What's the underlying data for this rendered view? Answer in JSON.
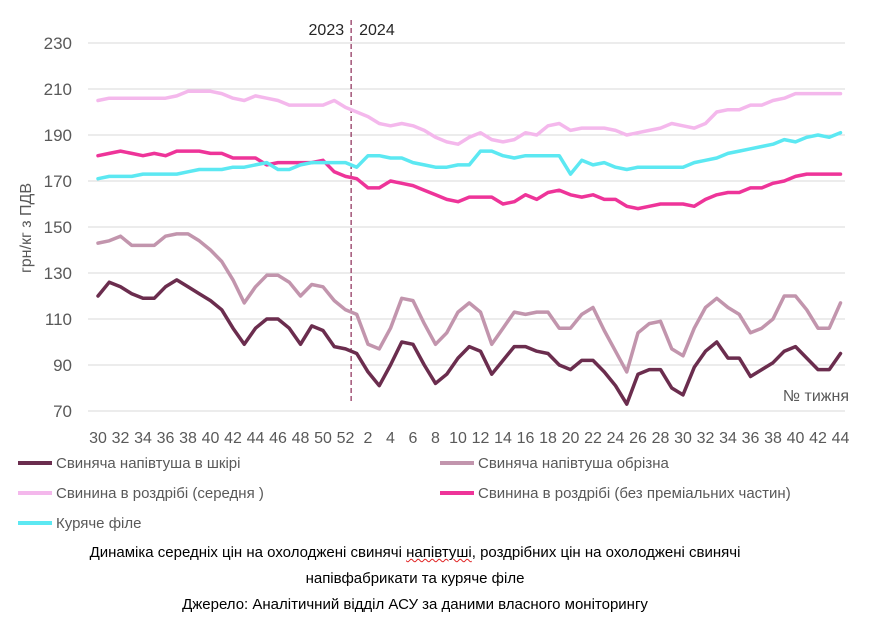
{
  "chart_data": {
    "type": "line",
    "ylabel": "грн/кг з ПДВ",
    "xlabel": "№ тижня",
    "ylim": [
      70,
      230
    ],
    "yticks": [
      70,
      90,
      110,
      130,
      150,
      170,
      190,
      210,
      230
    ],
    "x_weeks": [
      30,
      31,
      32,
      33,
      34,
      35,
      36,
      37,
      38,
      39,
      40,
      41,
      42,
      43,
      44,
      45,
      46,
      47,
      48,
      49,
      50,
      51,
      52,
      1,
      2,
      3,
      4,
      5,
      6,
      7,
      8,
      9,
      10,
      11,
      12,
      13,
      14,
      15,
      16,
      17,
      18,
      19,
      20,
      21,
      22,
      23,
      24,
      25,
      26,
      27,
      28,
      29,
      30,
      31,
      32,
      33,
      34,
      35,
      36,
      37,
      38,
      39,
      40,
      41,
      42,
      43,
      44
    ],
    "x_tick_labels": [
      "30",
      "32",
      "34",
      "36",
      "38",
      "40",
      "42",
      "44",
      "46",
      "48",
      "50",
      "52",
      "2",
      "4",
      "6",
      "8",
      "10",
      "12",
      "14",
      "16",
      "18",
      "20",
      "22",
      "24",
      "26",
      "28",
      "30",
      "32",
      "34",
      "36",
      "38",
      "40",
      "42",
      "44"
    ],
    "year_divider": {
      "left_label": "2023",
      "right_label": "2024"
    },
    "grid": "horizontal",
    "series": [
      {
        "name": "Свиняча напівтуша в шкірі",
        "color": "#6b2d4e",
        "values": [
          120,
          126,
          124,
          121,
          119,
          119,
          124,
          127,
          124,
          121,
          118,
          114,
          106,
          99,
          106,
          110,
          110,
          106,
          99,
          107,
          105,
          98,
          97,
          95,
          87,
          81,
          90,
          100,
          99,
          90,
          82,
          86,
          93,
          98,
          96,
          86,
          92,
          98,
          98,
          96,
          95,
          90,
          88,
          92,
          92,
          87,
          81,
          73,
          86,
          88,
          88,
          80,
          77,
          89,
          96,
          100,
          93,
          93,
          85,
          88,
          91,
          96,
          98,
          93,
          88,
          88,
          95
        ]
      },
      {
        "name": "Свиняча напівтуша обрізна",
        "color": "#c295ad",
        "values": [
          143,
          144,
          146,
          142,
          142,
          142,
          146,
          147,
          147,
          144,
          140,
          135,
          127,
          117,
          124,
          129,
          129,
          126,
          120,
          125,
          124,
          118,
          114,
          112,
          99,
          97,
          106,
          119,
          118,
          108,
          99,
          104,
          113,
          117,
          113,
          99,
          106,
          113,
          112,
          113,
          113,
          106,
          106,
          112,
          115,
          105,
          96,
          87,
          104,
          108,
          109,
          97,
          94,
          106,
          115,
          119,
          115,
          112,
          104,
          106,
          110,
          120,
          120,
          114,
          106,
          106,
          117
        ]
      },
      {
        "name": "Свинина в роздрібі (середня )",
        "color": "#f4b8ec",
        "values": [
          205,
          206,
          206,
          206,
          206,
          206,
          206,
          207,
          209,
          209,
          209,
          208,
          206,
          205,
          207,
          206,
          205,
          203,
          203,
          203,
          203,
          205,
          202,
          200,
          198,
          195,
          194,
          195,
          194,
          192,
          189,
          187,
          186,
          189,
          191,
          188,
          187,
          188,
          191,
          190,
          194,
          195,
          192,
          193,
          193,
          193,
          192,
          190,
          191,
          192,
          193,
          195,
          194,
          193,
          195,
          200,
          201,
          201,
          203,
          203,
          205,
          206,
          208,
          208,
          208,
          208,
          208
        ]
      },
      {
        "name": "Свинина в роздрібі (без преміальних частин)",
        "color": "#ee3499",
        "values": [
          181,
          182,
          183,
          182,
          181,
          182,
          181,
          183,
          183,
          183,
          182,
          182,
          180,
          180,
          180,
          177,
          178,
          178,
          178,
          178,
          179,
          174,
          172,
          171,
          167,
          167,
          170,
          169,
          168,
          166,
          164,
          162,
          161,
          163,
          163,
          163,
          160,
          161,
          164,
          162,
          165,
          166,
          164,
          163,
          164,
          162,
          162,
          159,
          158,
          159,
          160,
          160,
          160,
          159,
          162,
          164,
          165,
          165,
          167,
          167,
          169,
          170,
          172,
          173,
          173,
          173,
          173
        ]
      },
      {
        "name": "Куряче філе",
        "color": "#5ce8f2",
        "values": [
          171,
          172,
          172,
          172,
          173,
          173,
          173,
          173,
          174,
          175,
          175,
          175,
          176,
          176,
          177,
          178,
          175,
          175,
          177,
          178,
          178,
          178,
          178,
          176,
          181,
          181,
          180,
          180,
          178,
          177,
          176,
          176,
          177,
          177,
          183,
          183,
          181,
          180,
          181,
          181,
          181,
          181,
          173,
          179,
          177,
          178,
          176,
          175,
          176,
          176,
          176,
          176,
          176,
          178,
          179,
          180,
          182,
          183,
          184,
          185,
          186,
          188,
          187,
          189,
          190,
          189,
          191
        ]
      }
    ]
  },
  "caption": {
    "line1_pre": "Динаміка середніх цін на охолоджені свинячі ",
    "line1_word": "напівтуші",
    "line1_post": ", роздрібних цін на охолоджені свинячі",
    "line2": "напівфабрикати та куряче філе",
    "line3": "Джерело: Аналітичний відділ АСУ за даними власного моніторингу"
  }
}
